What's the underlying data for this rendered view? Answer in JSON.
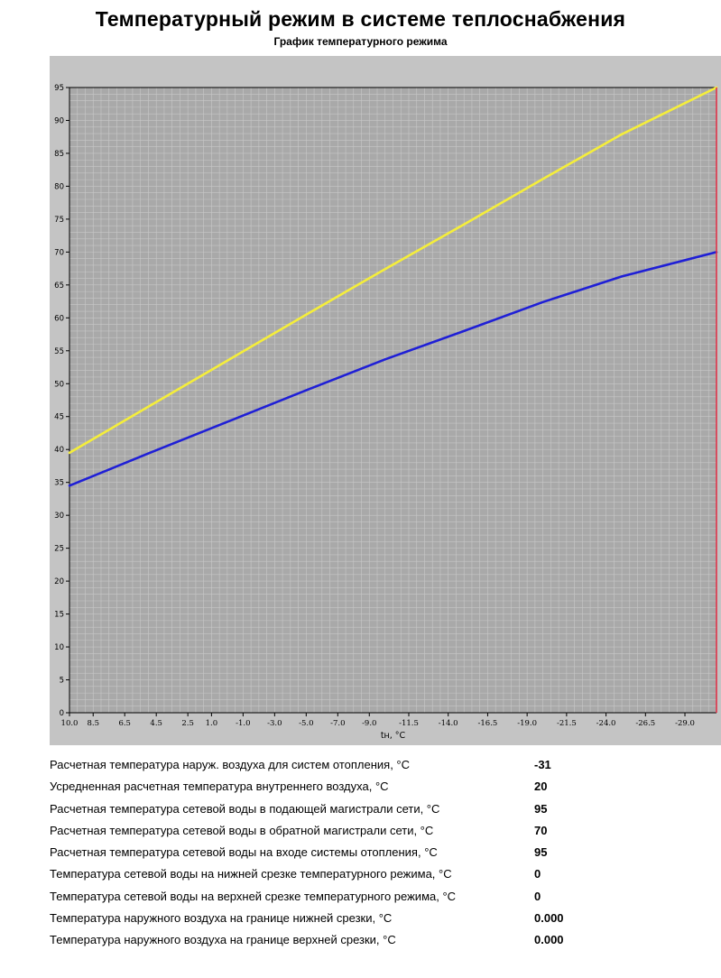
{
  "page": {
    "title": "Температурный режим в системе теплоснабжения"
  },
  "chart_data": {
    "type": "line",
    "title": "График температурного режима",
    "xlabel": "tн, °C",
    "ylabel": "",
    "x_ticks": [
      "10.0",
      "8.5",
      "6.5",
      "4.5",
      "2.5",
      "1.0",
      "-1.0",
      "-3.0",
      "-5.0",
      "-7.0",
      "-9.0",
      "-11.5",
      "-14.0",
      "-16.5",
      "-19.0",
      "-21.5",
      "-24.0",
      "-26.5",
      "-29.0"
    ],
    "xlim": [
      10,
      -31
    ],
    "ylim": [
      0,
      95
    ],
    "y_ticks": [
      0,
      5,
      10,
      15,
      20,
      25,
      30,
      35,
      40,
      45,
      50,
      55,
      60,
      65,
      70,
      75,
      80,
      85,
      90,
      95
    ],
    "grid": true,
    "background_color": "#a9a9a9",
    "outer_background_color": "#c4c4c4",
    "series": [
      {
        "color": "#f5ee3a",
        "x": [
          10,
          5,
          0,
          -5,
          -10,
          -15,
          -20,
          -25,
          -31
        ],
        "y": [
          39.5,
          46.5,
          53.5,
          60.5,
          67.4,
          74.2,
          81.1,
          87.9,
          95
        ]
      },
      {
        "color": "#1f1fd6",
        "x": [
          10,
          5,
          0,
          -5,
          -10,
          -15,
          -20,
          -25,
          -31
        ],
        "y": [
          34.5,
          39.4,
          44.2,
          49.0,
          53.7,
          58.0,
          62.4,
          66.3,
          70
        ]
      }
    ],
    "markers": [
      {
        "x": -31,
        "color": "#e0334a"
      }
    ]
  },
  "params": [
    {
      "label": "Расчетная температура наруж. воздуха для систем отопления, °C",
      "value": "-31"
    },
    {
      "label": "Усредненная расчетная температура внутреннего воздуха, °C",
      "value": "20"
    },
    {
      "label": "Расчетная температура сетевой воды в подающей магистрали сети, °C",
      "value": "95"
    },
    {
      "label": "Расчетная температура сетевой воды в обратной магистрали сети, °C",
      "value": "70"
    },
    {
      "label": "Расчетная температура сетевой воды на входе системы отопления, °C",
      "value": "95"
    },
    {
      "label": "Температура сетевой воды на нижней срезке температурного режима, °C",
      "value": "0"
    },
    {
      "label": "Температура сетевой воды на верхней срезке температурного режима, °C",
      "value": "0"
    },
    {
      "label": "Температура наружного воздуха на границе нижней срезки, °C",
      "value": "0.000"
    },
    {
      "label": "Температура наружного воздуха на границе верхней срезки, °C",
      "value": "0.000"
    }
  ]
}
